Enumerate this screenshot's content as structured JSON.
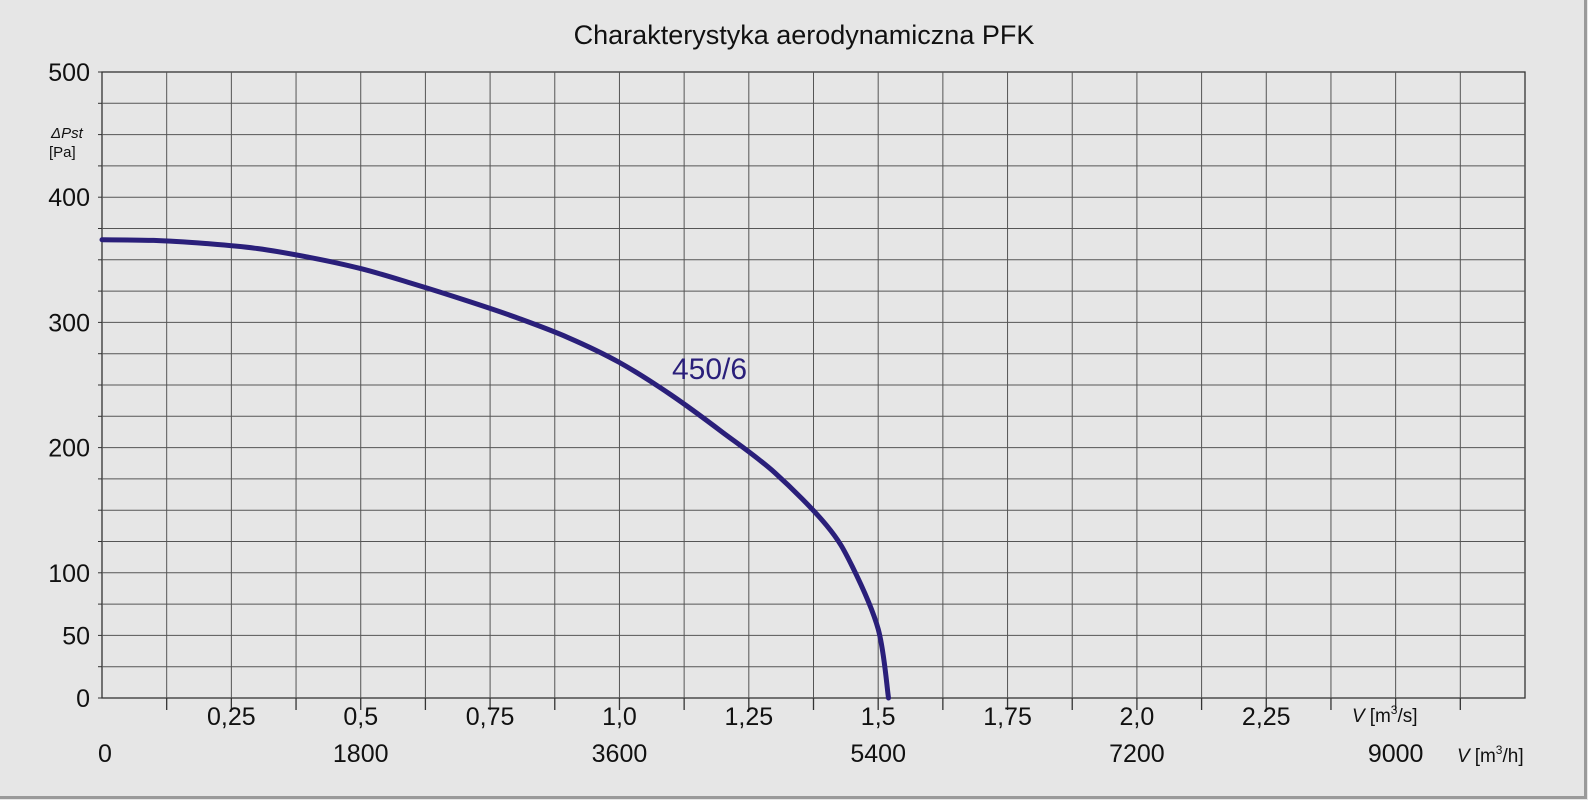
{
  "chart_data": {
    "type": "line",
    "title": "Charakterystyka aerodynamiczna PFK",
    "ylabel": "ΔPst",
    "yunit": "[Pa]",
    "xlabel_primary": {
      "symbol": "V",
      "unit_prefix": "[m",
      "sup": "3",
      "unit_suffix": "/s]"
    },
    "xlabel_secondary": {
      "symbol": "V",
      "unit_prefix": "[m",
      "sup": "3",
      "unit_suffix": "/h]"
    },
    "ylim": [
      0,
      500
    ],
    "xlim": [
      0,
      2.75
    ],
    "yticks": [
      "500",
      "400",
      "300",
      "200",
      "100",
      "50",
      "0"
    ],
    "ytick_values": [
      500,
      400,
      300,
      200,
      100,
      50,
      0
    ],
    "xticks_primary": [
      {
        "label": "0,25",
        "value": 0.25
      },
      {
        "label": "0,5",
        "value": 0.5
      },
      {
        "label": "0,75",
        "value": 0.75
      },
      {
        "label": "1,0",
        "value": 1.0
      },
      {
        "label": "1,25",
        "value": 1.25
      },
      {
        "label": "1,5",
        "value": 1.5
      },
      {
        "label": "1,75",
        "value": 1.75
      },
      {
        "label": "2,0",
        "value": 2.0
      },
      {
        "label": "2,25",
        "value": 2.25
      }
    ],
    "xticks_secondary": [
      {
        "label": "0",
        "value": 0
      },
      {
        "label": "1800",
        "value": 1800
      },
      {
        "label": "3600",
        "value": 3600
      },
      {
        "label": "5400",
        "value": 5400
      },
      {
        "label": "7200",
        "value": 7200
      },
      {
        "label": "9000",
        "value": 9000
      }
    ],
    "grid": true,
    "series": [
      {
        "name": "450/6",
        "color": "#2a1f7a",
        "x": [
          0,
          0.1,
          0.2,
          0.3,
          0.4,
          0.5,
          0.6,
          0.7,
          0.8,
          0.9,
          1.0,
          1.1,
          1.2,
          1.3,
          1.4,
          1.45,
          1.5,
          1.52
        ],
        "y": [
          366,
          365.5,
          363,
          359,
          352,
          343,
          331,
          318,
          304,
          288,
          268,
          242,
          212,
          180,
          138,
          105,
          55,
          0
        ]
      }
    ]
  }
}
